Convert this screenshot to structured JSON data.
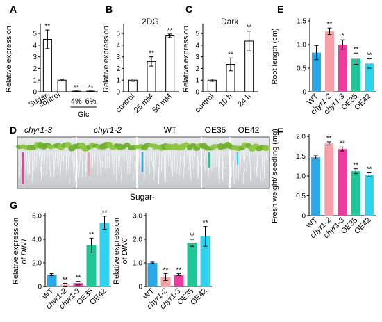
{
  "colors": {
    "wt": "#2aa7e6",
    "chyr1_2": "#f7a0a8",
    "chyr1_3": "#ec3d9e",
    "oe35": "#1fc698",
    "oe42": "#2fd3f0",
    "white_bar": "#ffffff",
    "axis": "#000000"
  },
  "chart_data": [
    {
      "id": "A",
      "panel_label": "A",
      "type": "bar",
      "inset_text": "",
      "categories": [
        "Sugar-",
        "control",
        "4%",
        "6%"
      ],
      "group_label": "Glc",
      "ylabel": "Relative expression",
      "yticks": [
        "0",
        "1",
        "2",
        "3",
        "4",
        "5"
      ],
      "ylim": [
        0,
        5.6
      ],
      "values": [
        4.5,
        1.0,
        0.05,
        0.05
      ],
      "errors": [
        0.8,
        0.08,
        0.02,
        0.02
      ],
      "significance": [
        "**",
        "",
        "**",
        "**"
      ],
      "bar_colors": [
        "#ffffff",
        "#ffffff",
        "#ffffff",
        "#ffffff"
      ]
    },
    {
      "id": "B",
      "panel_label": "B",
      "type": "bar",
      "inset_text": "2DG",
      "categories": [
        "control",
        "25 mM",
        "50 mM"
      ],
      "ylabel": "Relative expression",
      "yticks": [
        "0",
        "1",
        "2",
        "3",
        "4",
        "5"
      ],
      "ylim": [
        0,
        5.6
      ],
      "values": [
        1.0,
        2.6,
        4.8
      ],
      "errors": [
        0.1,
        0.4,
        0.15
      ],
      "significance": [
        "",
        "**",
        "**"
      ],
      "bar_colors": [
        "#ffffff",
        "#ffffff",
        "#ffffff"
      ]
    },
    {
      "id": "C",
      "panel_label": "C",
      "type": "bar",
      "inset_text": "Dark",
      "categories": [
        "control",
        "10 h",
        "24 h"
      ],
      "ylabel": "Relative expression",
      "yticks": [
        "0",
        "1",
        "2",
        "3",
        "4",
        "5"
      ],
      "ylim": [
        0,
        5.6
      ],
      "values": [
        1.0,
        2.35,
        4.35
      ],
      "errors": [
        0.1,
        0.55,
        0.85
      ],
      "significance": [
        "",
        "**",
        "**"
      ],
      "bar_colors": [
        "#ffffff",
        "#ffffff",
        "#ffffff"
      ]
    },
    {
      "id": "E",
      "panel_label": "E",
      "type": "bar",
      "inset_text": "",
      "categories": [
        "WT",
        "chyr1-2",
        "chyr1-3",
        "OE35",
        "OE42"
      ],
      "italic_categories": [
        false,
        true,
        true,
        false,
        false
      ],
      "ylabel": "Root length (cm)",
      "yticks": [
        "0",
        "0.5",
        "1.0",
        "1.5"
      ],
      "ylim": [
        0,
        1.5
      ],
      "values": [
        0.83,
        1.28,
        1.0,
        0.7,
        0.6
      ],
      "errors": [
        0.15,
        0.07,
        0.1,
        0.12,
        0.1
      ],
      "significance": [
        "",
        "**",
        "*",
        "**",
        "**"
      ],
      "bar_colors": [
        "#2aa7e6",
        "#f7a0a8",
        "#ec3d9e",
        "#1fc698",
        "#2fd3f0"
      ]
    },
    {
      "id": "F",
      "panel_label": "F",
      "type": "bar",
      "inset_text": "",
      "categories": [
        "WT",
        "chyr1-2",
        "chyr1-3",
        "OE35",
        "OE42"
      ],
      "italic_categories": [
        false,
        true,
        true,
        false,
        false
      ],
      "ylabel": "Fresh weight/ seedling (mg)",
      "yticks": [
        "0",
        "0.5",
        "1.0",
        "1.5",
        "2.0"
      ],
      "ylim": [
        0,
        2.0
      ],
      "values": [
        1.47,
        1.82,
        1.68,
        1.12,
        1.03
      ],
      "errors": [
        0.04,
        0.04,
        0.05,
        0.06,
        0.05
      ],
      "significance": [
        "",
        "**",
        "**",
        "**",
        "**"
      ],
      "bar_colors": [
        "#2aa7e6",
        "#f7a0a8",
        "#ec3d9e",
        "#1fc698",
        "#2fd3f0"
      ]
    },
    {
      "id": "G1",
      "panel_label": "G",
      "type": "bar",
      "inset_text": "",
      "categories": [
        "WT",
        "chyr1-2",
        "chyr1-3",
        "OE35",
        "OE42"
      ],
      "italic_categories": [
        false,
        true,
        true,
        false,
        false
      ],
      "ylabel_line1": "Relative expression",
      "ylabel_line2_prefix": "of ",
      "ylabel_line2_gene": "DIN1",
      "yticks": [
        "0",
        "2.0",
        "4.0",
        "6.0"
      ],
      "ylim": [
        0,
        6.0
      ],
      "values": [
        1.0,
        0.15,
        0.28,
        3.5,
        5.4
      ],
      "errors": [
        0.08,
        0.12,
        0.15,
        0.6,
        0.55
      ],
      "significance": [
        "",
        "**",
        "**",
        "**",
        "**"
      ],
      "bar_colors": [
        "#2aa7e6",
        "#f7a0a8",
        "#ec3d9e",
        "#1fc698",
        "#2fd3f0"
      ]
    },
    {
      "id": "G2",
      "panel_label": "",
      "type": "bar",
      "inset_text": "",
      "categories": [
        "WT",
        "chyr1-2",
        "chyr1-3",
        "OE35",
        "OE42"
      ],
      "italic_categories": [
        false,
        true,
        true,
        false,
        false
      ],
      "ylabel_line1": "Relative expression",
      "ylabel_line2_prefix": "of ",
      "ylabel_line2_gene": "DIN6",
      "yticks": [
        "0",
        "1.0",
        "2.0",
        "3.0"
      ],
      "ylim": [
        0,
        3.0
      ],
      "values": [
        1.0,
        0.4,
        0.5,
        1.85,
        2.12
      ],
      "errors": [
        0.03,
        0.15,
        0.04,
        0.15,
        0.42
      ],
      "significance": [
        "",
        "**",
        "**",
        "**",
        "**"
      ],
      "bar_colors": [
        "#2aa7e6",
        "#f7a0a8",
        "#ec3d9e",
        "#1fc698",
        "#2fd3f0"
      ]
    }
  ],
  "photo": {
    "panel_label": "D",
    "genotypes": [
      {
        "label": "chyr1-3",
        "italic": true
      },
      {
        "label": "chyr1-2",
        "italic": true
      },
      {
        "label": "WT",
        "italic": false
      },
      {
        "label": "OE35",
        "italic": false
      },
      {
        "label": "OE42",
        "italic": false
      }
    ],
    "caption": "Sugar-",
    "marker_colors": [
      "#ec3d9e",
      "#f7a0a8",
      "#2aa7e6",
      "#1fc698",
      "#2fd3f0"
    ]
  }
}
